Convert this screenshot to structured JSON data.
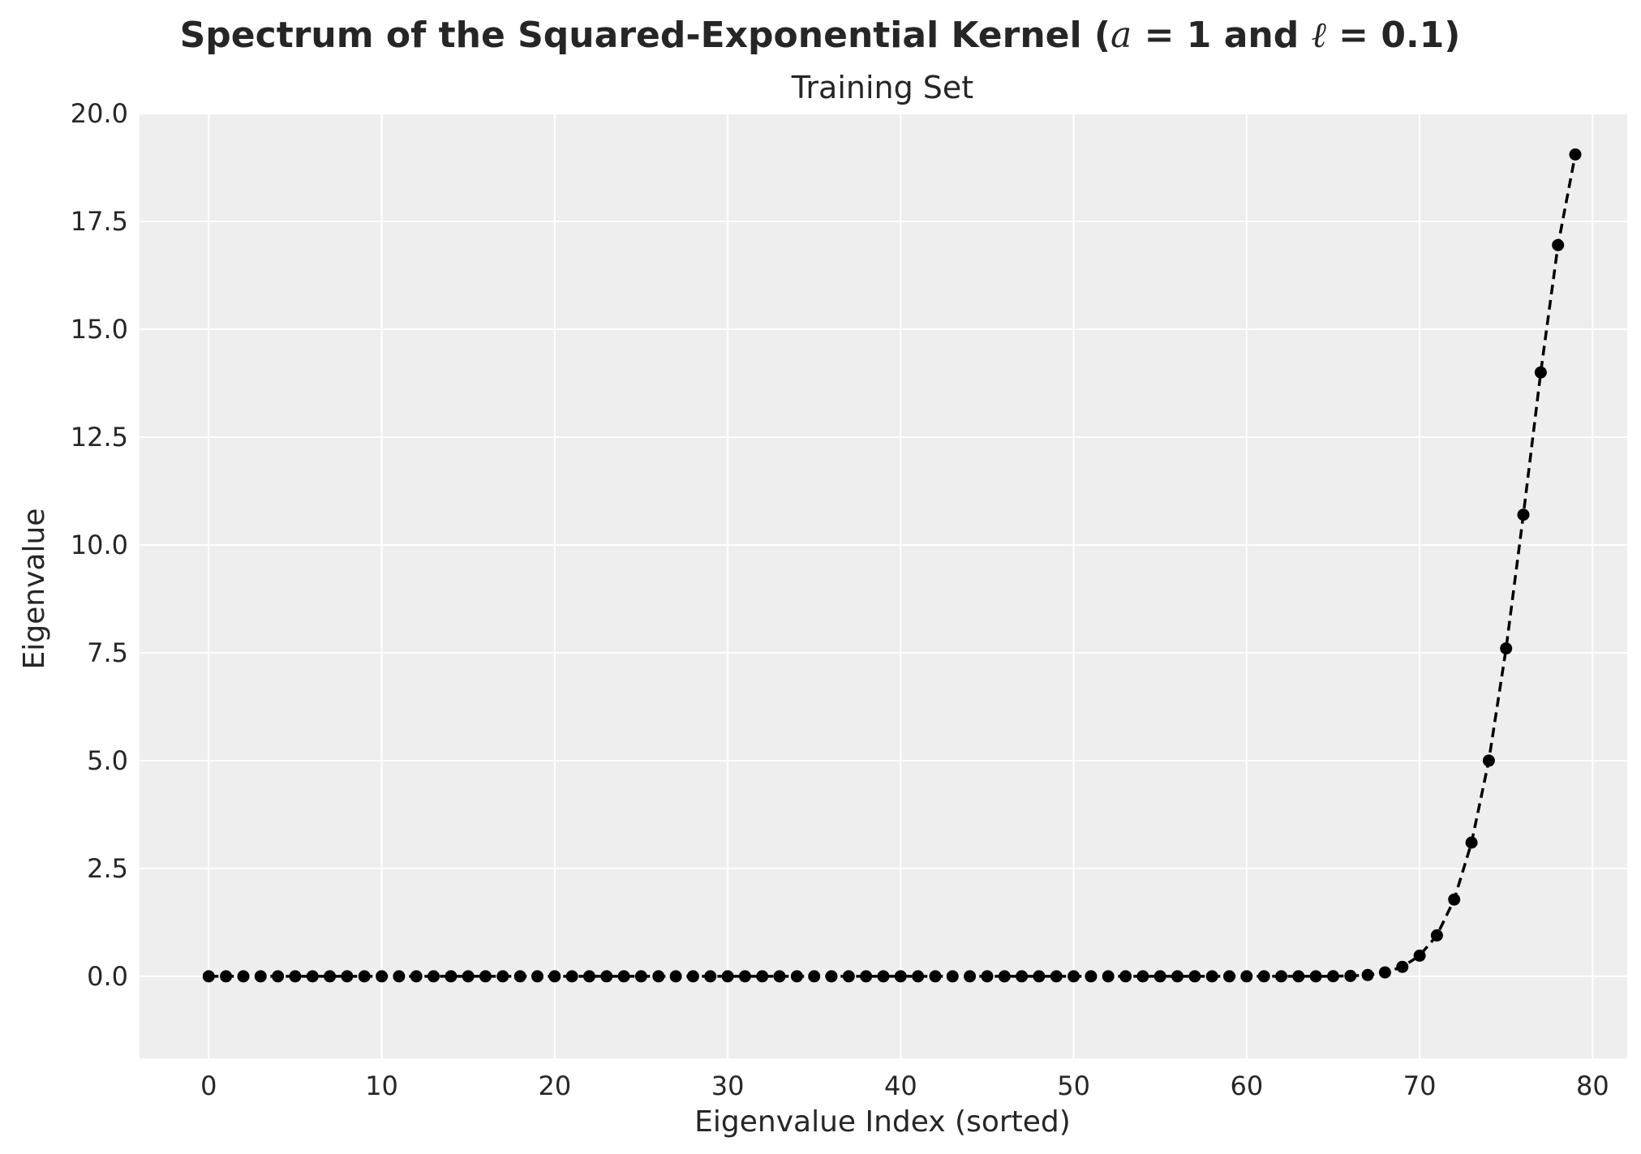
{
  "chart_data": {
    "type": "line",
    "title_parts": [
      "Spectrum of the Squared-Exponential Kernel (",
      "a",
      " = 1 and ",
      "ℓ",
      " = 0.1)"
    ],
    "subtitle": "Training Set",
    "xlabel": "Eigenvalue Index (sorted)",
    "ylabel": "Eigenvalue",
    "xlim": [
      -4,
      82
    ],
    "ylim": [
      -1.9,
      20
    ],
    "xticks": [
      0,
      10,
      20,
      30,
      40,
      50,
      60,
      70,
      80
    ],
    "yticks": [
      0,
      2.5,
      5,
      7.5,
      10,
      12.5,
      15,
      17.5,
      20
    ],
    "ytick_labels": [
      "0.0",
      "2.5",
      "5.0",
      "7.5",
      "10.0",
      "12.5",
      "15.0",
      "17.5",
      "20.0"
    ],
    "grid": true,
    "style": {
      "background": "#eeeeee",
      "line_color": "#000000",
      "line_dash": "dashed",
      "marker": "circle"
    },
    "series": [
      {
        "x_start": 0,
        "values": [
          0,
          0,
          0,
          0,
          0,
          0,
          0,
          0,
          0,
          0,
          0,
          0,
          0,
          0,
          0,
          0,
          0,
          0,
          0,
          0,
          0,
          0,
          0,
          0,
          0,
          0,
          0,
          0,
          0,
          0,
          0,
          0,
          0,
          0,
          0,
          0,
          0,
          0,
          0,
          0,
          0,
          0,
          0,
          0,
          0,
          0,
          0,
          0,
          0,
          0,
          0,
          0,
          0,
          0,
          0,
          0,
          0,
          0,
          0,
          0,
          0,
          0,
          0,
          0,
          0,
          0.003,
          0.01,
          0.03,
          0.09,
          0.22,
          0.48,
          0.95,
          1.78,
          3.1,
          5.0,
          7.6,
          10.7,
          14.0,
          16.95,
          19.05
        ]
      }
    ]
  }
}
